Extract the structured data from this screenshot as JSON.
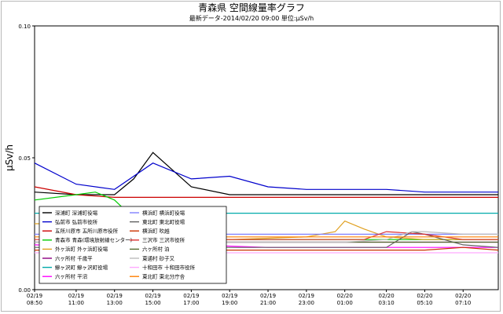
{
  "chart_data": {
    "type": "line",
    "title": "青森県 空間線量率グラフ",
    "subtitle": "最新データ-2014/02/20 09:00 単位:μSv/h",
    "ylabel": "μSv/h",
    "ylim": [
      0,
      0.1
    ],
    "yticks": [
      "0.00",
      "0.05",
      "0.10"
    ],
    "x_range": [
      "2014-02-19 08:50",
      "2014-02-20 09:00"
    ],
    "xticks": [
      {
        "date": "02/19",
        "time": "08:50"
      },
      {
        "date": "02/19",
        "time": "11:00"
      },
      {
        "date": "02/19",
        "time": "13:00"
      },
      {
        "date": "02/19",
        "time": "15:00"
      },
      {
        "date": "02/19",
        "time": "17:00"
      },
      {
        "date": "02/19",
        "time": "19:00"
      },
      {
        "date": "02/19",
        "time": "21:00"
      },
      {
        "date": "02/19",
        "time": "23:00"
      },
      {
        "date": "02/20",
        "time": "01:00"
      },
      {
        "date": "02/20",
        "time": "03:10"
      },
      {
        "date": "02/20",
        "time": "05:10"
      },
      {
        "date": "02/20",
        "time": "07:10"
      }
    ],
    "legend_position": "bottom-left",
    "series": [
      {
        "name": "深浦町 深浦町役場",
        "color": "#000000",
        "x": [
          "02/19 08:50",
          "02/19 11:00",
          "02/19 13:00",
          "02/19 14:00",
          "02/19 15:00",
          "02/19 17:00",
          "02/19 19:00",
          "02/19 21:00",
          "02/19 23:00",
          "02/20 01:00",
          "02/20 03:10",
          "02/20 05:10",
          "02/20 07:10",
          "02/20 09:00"
        ],
        "values": [
          0.037,
          0.036,
          0.036,
          0.042,
          0.052,
          0.039,
          0.036,
          0.036,
          0.036,
          0.036,
          0.036,
          0.036,
          0.036,
          0.036
        ]
      },
      {
        "name": "弘前市 弘前市役所",
        "color": "#0000cc",
        "x": [
          "02/19 08:50",
          "02/19 11:00",
          "02/19 13:00",
          "02/19 15:00",
          "02/19 17:00",
          "02/19 19:00",
          "02/19 21:00",
          "02/19 23:00",
          "02/20 01:00",
          "02/20 03:10",
          "02/20 05:10",
          "02/20 07:10",
          "02/20 09:00"
        ],
        "values": [
          0.048,
          0.04,
          0.038,
          0.048,
          0.042,
          0.043,
          0.039,
          0.038,
          0.038,
          0.038,
          0.037,
          0.037,
          0.037
        ]
      },
      {
        "name": "五所川原市 五所川原市役所",
        "color": "#cc0000",
        "x": [
          "02/19 08:50",
          "02/19 11:00",
          "02/19 13:00",
          "02/19 15:00",
          "02/19 17:00",
          "02/19 19:00",
          "02/19 21:00",
          "02/19 23:00",
          "02/20 01:00",
          "02/20 03:10",
          "02/20 05:10",
          "02/20 07:10",
          "02/20 09:00"
        ],
        "values": [
          0.039,
          0.036,
          0.035,
          0.035,
          0.035,
          0.035,
          0.035,
          0.035,
          0.035,
          0.035,
          0.035,
          0.035,
          0.035
        ]
      },
      {
        "name": "青森市 青森(環境放射線センター)",
        "color": "#00cc00",
        "x": [
          "02/19 08:50",
          "02/19 11:00",
          "02/19 12:00",
          "02/19 13:00",
          "02/19 15:00",
          "02/19 19:00",
          "02/19 23:00",
          "02/20 03:10",
          "02/20 07:10",
          "02/20 09:00"
        ],
        "values": [
          0.034,
          0.036,
          0.037,
          0.034,
          0.02,
          0.019,
          0.019,
          0.019,
          0.019,
          0.019
        ]
      },
      {
        "name": "外ヶ浜町 外ヶ浜町役場",
        "color": "#e0a020",
        "x": [
          "02/19 08:50",
          "02/19 11:00",
          "02/19 15:00",
          "02/19 19:00",
          "02/19 23:00",
          "02/20 00:30",
          "02/20 01:00",
          "02/20 02:00",
          "02/20 03:10",
          "02/20 05:10",
          "02/20 07:10",
          "02/20 09:00"
        ],
        "values": [
          0.025,
          0.025,
          0.02,
          0.019,
          0.02,
          0.022,
          0.026,
          0.023,
          0.02,
          0.019,
          0.019,
          0.019
        ]
      },
      {
        "name": "六ヶ所村 千歳平",
        "color": "#8b0080",
        "x": [
          "02/19 08:50",
          "02/19 13:00",
          "02/19 17:00",
          "02/19 21:00",
          "02/20 01:00",
          "02/20 05:10",
          "02/20 09:00"
        ],
        "values": [
          0.018,
          0.018,
          0.018,
          0.018,
          0.018,
          0.018,
          0.018
        ]
      },
      {
        "name": "鰺ヶ沢町 鰺ヶ沢町役場",
        "color": "#00aaaa",
        "x": [
          "02/19 08:50",
          "02/19 13:00",
          "02/19 17:00",
          "02/19 21:00",
          "02/20 01:00",
          "02/20 05:10",
          "02/20 09:00"
        ],
        "values": [
          0.029,
          0.029,
          0.029,
          0.029,
          0.029,
          0.029,
          0.029
        ]
      },
      {
        "name": "六ヶ所村 平沼",
        "color": "#ff00ff",
        "x": [
          "02/19 08:50",
          "02/19 13:00",
          "02/19 17:00",
          "02/19 21:00",
          "02/20 01:00",
          "02/20 05:10",
          "02/20 09:00"
        ],
        "values": [
          0.017,
          0.016,
          0.017,
          0.016,
          0.016,
          0.016,
          0.016
        ]
      },
      {
        "name": "横浜町 横浜町役場",
        "color": "#8080ff",
        "x": [
          "02/19 08:50",
          "02/19 13:00",
          "02/19 17:00",
          "02/19 21:00",
          "02/20 01:00",
          "02/20 05:10",
          "02/20 09:00"
        ],
        "values": [
          0.021,
          0.021,
          0.021,
          0.021,
          0.021,
          0.021,
          0.021
        ]
      },
      {
        "name": "東北町 東北町役場",
        "color": "#606060",
        "x": [
          "02/19 08:50",
          "02/19 13:00",
          "02/19 17:00",
          "02/19 21:00",
          "02/20 01:00",
          "02/20 03:10",
          "02/20 04:30",
          "02/20 05:10",
          "02/20 07:10",
          "02/20 09:00"
        ],
        "values": [
          0.016,
          0.016,
          0.016,
          0.016,
          0.016,
          0.016,
          0.022,
          0.021,
          0.017,
          0.016
        ]
      },
      {
        "name": "横浜町 吹越",
        "color": "#cc3300",
        "x": [
          "02/19 08:50",
          "02/19 13:00",
          "02/19 17:00",
          "02/19 21:00",
          "02/20 01:00",
          "02/20 03:00",
          "02/20 05:10",
          "02/20 07:10",
          "02/20 09:00"
        ],
        "values": [
          0.015,
          0.015,
          0.015,
          0.015,
          0.015,
          0.015,
          0.015,
          0.016,
          0.015
        ]
      },
      {
        "name": "三沢市 三沢市役所",
        "color": "#dd3333",
        "x": [
          "02/19 08:50",
          "02/19 13:00",
          "02/19 17:00",
          "02/19 21:00",
          "02/20 01:00",
          "02/20 02:00",
          "02/20 03:10",
          "02/20 05:10",
          "02/20 07:10",
          "02/20 09:00"
        ],
        "values": [
          0.019,
          0.019,
          0.019,
          0.019,
          0.019,
          0.019,
          0.022,
          0.021,
          0.019,
          0.019
        ]
      },
      {
        "name": "六ヶ所村 泊",
        "color": "#556b2f",
        "x": [
          "02/19 08:50",
          "02/19 13:00",
          "02/19 17:00",
          "02/19 21:00",
          "02/20 01:00",
          "02/20 05:10",
          "02/20 09:00"
        ],
        "values": [
          0.018,
          0.018,
          0.018,
          0.018,
          0.018,
          0.018,
          0.018
        ]
      },
      {
        "name": "東通村 砂子又",
        "color": "#bbbbbb",
        "x": [
          "02/19 08:50",
          "02/19 13:00",
          "02/19 17:00",
          "02/19 21:00",
          "02/20 01:00",
          "02/20 03:10",
          "02/20 04:30",
          "02/20 05:10",
          "02/20 07:10",
          "02/20 09:00"
        ],
        "values": [
          0.018,
          0.018,
          0.018,
          0.018,
          0.018,
          0.019,
          0.022,
          0.022,
          0.021,
          0.021
        ]
      },
      {
        "name": "十和田市 十和田市役所",
        "color": "#ffaaff",
        "x": [
          "02/19 08:50",
          "02/19 13:00",
          "02/19 17:00",
          "02/19 21:00",
          "02/20 01:00",
          "02/20 05:10",
          "02/20 09:00"
        ],
        "values": [
          0.014,
          0.014,
          0.014,
          0.014,
          0.014,
          0.014,
          0.014
        ]
      },
      {
        "name": "東北町 東北分庁舎",
        "color": "#ff7f00",
        "x": [
          "02/19 08:50",
          "02/19 13:00",
          "02/19 17:00",
          "02/19 21:00",
          "02/20 01:00",
          "02/20 05:10",
          "02/20 09:00"
        ],
        "values": [
          0.02,
          0.02,
          0.02,
          0.02,
          0.02,
          0.02,
          0.02
        ]
      }
    ]
  }
}
